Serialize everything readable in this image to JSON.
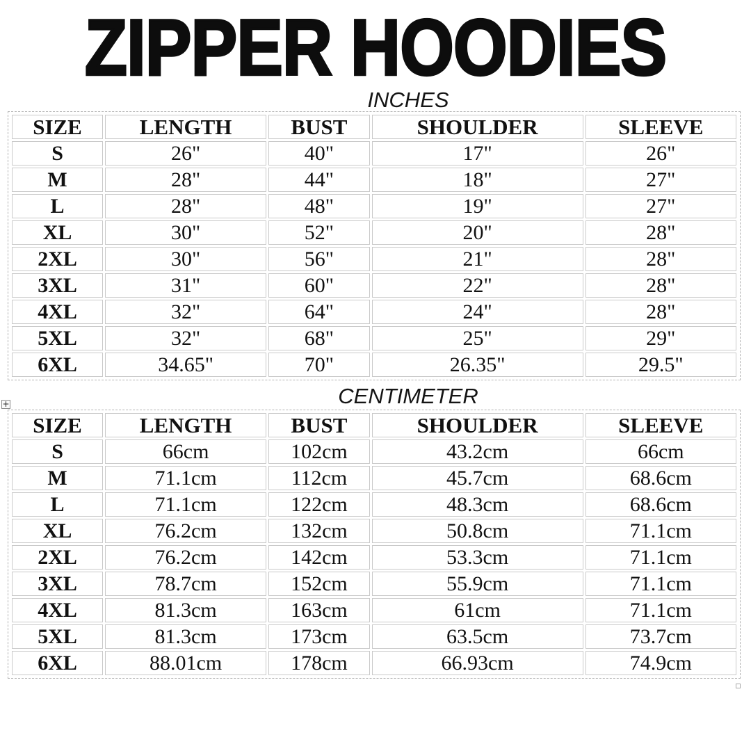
{
  "page": {
    "title": "ZIPPER HOODIES"
  },
  "icons": {
    "table_move_handle_glyph": "+"
  },
  "tables": [
    {
      "id": "inches",
      "label": "INCHES",
      "headers": [
        "SIZE",
        "LENGTH",
        "BUST",
        "SHOULDER",
        "SLEEVE"
      ],
      "rows": [
        {
          "size": "S",
          "values": [
            "26\"",
            "40\"",
            "17\"",
            "26\""
          ]
        },
        {
          "size": "M",
          "values": [
            "28\"",
            "44\"",
            "18\"",
            "27\""
          ]
        },
        {
          "size": "L",
          "values": [
            "28\"",
            "48\"",
            "19\"",
            "27\""
          ]
        },
        {
          "size": "XL",
          "values": [
            "30\"",
            "52\"",
            "20\"",
            "28\""
          ]
        },
        {
          "size": "2XL",
          "values": [
            "30\"",
            "56\"",
            "21\"",
            "28\""
          ]
        },
        {
          "size": "3XL",
          "values": [
            "31\"",
            "60\"",
            "22\"",
            "28\""
          ]
        },
        {
          "size": "4XL",
          "values": [
            "32\"",
            "64\"",
            "24\"",
            "28\""
          ]
        },
        {
          "size": "5XL",
          "values": [
            "32\"",
            "68\"",
            "25\"",
            "29\""
          ]
        },
        {
          "size": "6XL",
          "values": [
            "34.65\"",
            "70\"",
            "26.35\"",
            "29.5\""
          ]
        }
      ]
    },
    {
      "id": "centimeter",
      "label": "CENTIMETER",
      "headers": [
        "SIZE",
        "LENGTH",
        "BUST",
        "SHOULDER",
        "SLEEVE"
      ],
      "rows": [
        {
          "size": "S",
          "values": [
            "66cm",
            "102cm",
            "43.2cm",
            "66cm"
          ]
        },
        {
          "size": "M",
          "values": [
            "71.1cm",
            "112cm",
            "45.7cm",
            "68.6cm"
          ]
        },
        {
          "size": "L",
          "values": [
            "71.1cm",
            "122cm",
            "48.3cm",
            "68.6cm"
          ]
        },
        {
          "size": "XL",
          "values": [
            "76.2cm",
            "132cm",
            "50.8cm",
            "71.1cm"
          ]
        },
        {
          "size": "2XL",
          "values": [
            "76.2cm",
            "142cm",
            "53.3cm",
            "71.1cm"
          ]
        },
        {
          "size": "3XL",
          "values": [
            "78.7cm",
            "152cm",
            "55.9cm",
            "71.1cm"
          ]
        },
        {
          "size": "4XL",
          "values": [
            "81.3cm",
            "163cm",
            "61cm",
            "71.1cm"
          ]
        },
        {
          "size": "5XL",
          "values": [
            "81.3cm",
            "173cm",
            "63.5cm",
            "73.7cm"
          ]
        },
        {
          "size": "6XL",
          "values": [
            "88.01cm",
            "178cm",
            "66.93cm",
            "74.9cm"
          ]
        }
      ]
    }
  ]
}
